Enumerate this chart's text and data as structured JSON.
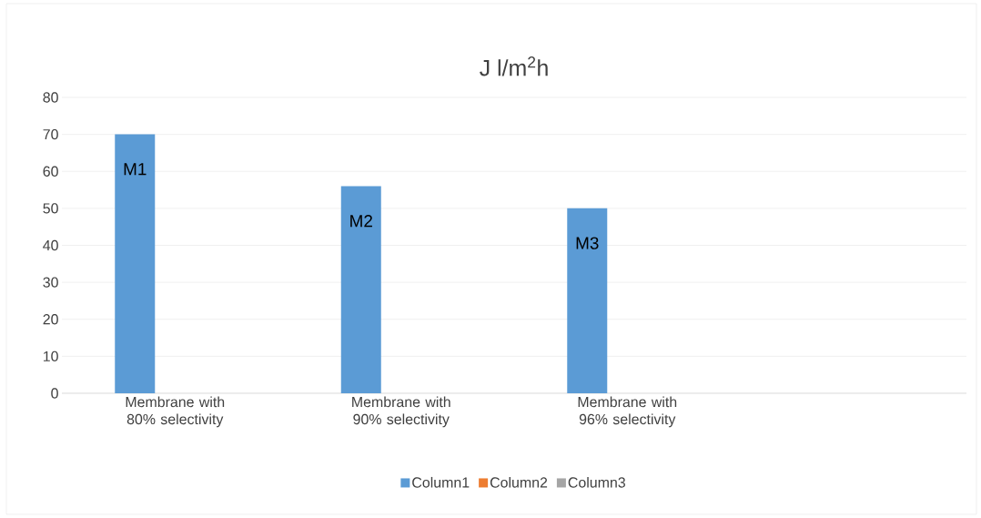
{
  "chart_data": {
    "type": "bar",
    "title": "J l/m$^{2}$h",
    "categories": [
      "Membrane with 80% selectivity",
      "Membrane with 90% selectivity",
      "Membrane with 96% selectivity",
      null
    ],
    "series": [
      {
        "name": "Column1",
        "color": "#5b9bd5",
        "values": [
          70,
          56,
          50,
          null
        ],
        "value_labels": [
          "M1",
          "M2",
          "M3",
          null
        ]
      },
      {
        "name": "Column2",
        "color": "#ed7d31",
        "values": [
          null,
          null,
          null,
          null
        ]
      },
      {
        "name": "Column3",
        "color": "#a5a5a5",
        "values": [
          null,
          null,
          null,
          null
        ]
      }
    ],
    "ylim": [
      0,
      80
    ],
    "yticks": [
      0,
      10,
      20,
      30,
      40,
      50,
      60,
      70,
      80
    ],
    "grid": "y",
    "legend": "bottom"
  }
}
